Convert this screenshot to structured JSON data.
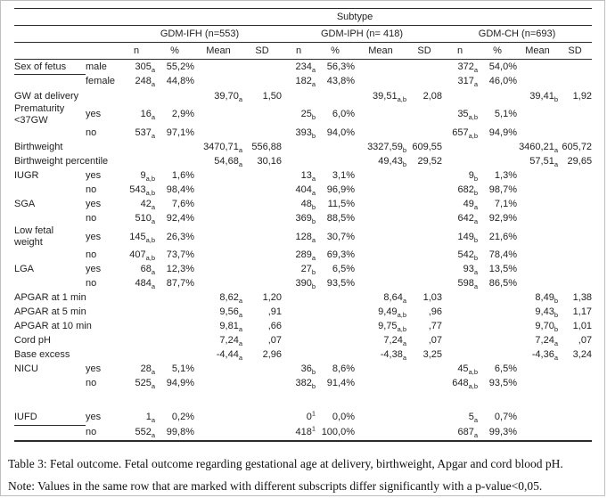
{
  "table": {
    "subtype_header": "Subtype",
    "groups": [
      {
        "label": "GDM-IFH (n=553)"
      },
      {
        "label": "GDM-IPH (n= 418)"
      },
      {
        "label": "GDM-CH (n=693)"
      }
    ],
    "col_headers": [
      "n",
      "%",
      "Mean",
      "SD"
    ],
    "rows": [
      {
        "label": "Sex of fetus",
        "ul": true,
        "sub": "male",
        "cells": [
          {
            "v": "305",
            "sb": "a"
          },
          {
            "v": "55,2%"
          },
          null,
          null,
          {
            "v": "234",
            "sb": "a"
          },
          {
            "v": "56,3%"
          },
          null,
          null,
          {
            "v": "372",
            "sb": "a"
          },
          {
            "v": "54,0%"
          },
          null,
          null
        ]
      },
      {
        "sub": "female",
        "cells": [
          {
            "v": "248",
            "sb": "a"
          },
          {
            "v": "44,8%"
          },
          null,
          null,
          {
            "v": "182",
            "sb": "a"
          },
          {
            "v": "43,8%"
          },
          null,
          null,
          {
            "v": "317",
            "sb": "a"
          },
          {
            "v": "46,0%"
          },
          null,
          null
        ]
      },
      {
        "label": "GW at delivery",
        "cells": [
          null,
          null,
          {
            "v": "39,70",
            "sb": "a"
          },
          {
            "v": "1,50"
          },
          null,
          null,
          {
            "v": "39,51",
            "sb": "a,b"
          },
          {
            "v": "2,08"
          },
          null,
          null,
          {
            "v": "39,41",
            "sb": "b"
          },
          {
            "v": "1,92"
          }
        ]
      },
      {
        "label": "Prematurity\n<37GW",
        "sub": "yes",
        "cells": [
          {
            "v": "16",
            "sb": "a"
          },
          {
            "v": "2,9%"
          },
          null,
          null,
          {
            "v": "25",
            "sb": "b"
          },
          {
            "v": "6,0%"
          },
          null,
          null,
          {
            "v": "35",
            "sb": "a,b"
          },
          {
            "v": "5,1%"
          },
          null,
          null
        ]
      },
      {
        "sub": "no",
        "cells": [
          {
            "v": "537",
            "sb": "a"
          },
          {
            "v": "97,1%"
          },
          null,
          null,
          {
            "v": "393",
            "sb": "b"
          },
          {
            "v": "94,0%"
          },
          null,
          null,
          {
            "v": "657",
            "sb": "a,b"
          },
          {
            "v": "94,9%"
          },
          null,
          null
        ]
      },
      {
        "label": "Birthweight",
        "cells": [
          null,
          null,
          {
            "v": "3470,71",
            "sb": "a"
          },
          {
            "v": "556,88"
          },
          null,
          null,
          {
            "v": "3327,59",
            "sb": "b"
          },
          {
            "v": "609,55"
          },
          null,
          null,
          {
            "v": "3460,21",
            "sb": "a"
          },
          {
            "v": "605,72"
          }
        ]
      },
      {
        "label": "Birthweight percentile",
        "cells": [
          null,
          null,
          {
            "v": "54,68",
            "sb": "a"
          },
          {
            "v": "30,16"
          },
          null,
          null,
          {
            "v": "49,43",
            "sb": "b"
          },
          {
            "v": "29,52"
          },
          null,
          null,
          {
            "v": "57,51",
            "sb": "a"
          },
          {
            "v": "29,65"
          }
        ]
      },
      {
        "label": "IUGR",
        "sub": "yes",
        "cells": [
          {
            "v": "9",
            "sb": "a,b"
          },
          {
            "v": "1,6%"
          },
          null,
          null,
          {
            "v": "13",
            "sb": "a"
          },
          {
            "v": "3,1%"
          },
          null,
          null,
          {
            "v": "9",
            "sb": "b"
          },
          {
            "v": "1,3%"
          },
          null,
          null
        ]
      },
      {
        "sub": "no",
        "cells": [
          {
            "v": "543",
            "sb": "a,b"
          },
          {
            "v": "98,4%"
          },
          null,
          null,
          {
            "v": "404",
            "sb": "a"
          },
          {
            "v": "96,9%"
          },
          null,
          null,
          {
            "v": "682",
            "sb": "b"
          },
          {
            "v": "98,7%"
          },
          null,
          null
        ]
      },
      {
        "label": "SGA",
        "sub": "yes",
        "cells": [
          {
            "v": "42",
            "sb": "a"
          },
          {
            "v": "7,6%"
          },
          null,
          null,
          {
            "v": "48",
            "sb": "b"
          },
          {
            "v": "11,5%"
          },
          null,
          null,
          {
            "v": "49",
            "sb": "a"
          },
          {
            "v": "7,1%"
          },
          null,
          null
        ]
      },
      {
        "sub": "no",
        "cells": [
          {
            "v": "510",
            "sb": "a"
          },
          {
            "v": "92,4%"
          },
          null,
          null,
          {
            "v": "369",
            "sb": "b"
          },
          {
            "v": "88,5%"
          },
          null,
          null,
          {
            "v": "642",
            "sb": "a"
          },
          {
            "v": "92,9%"
          },
          null,
          null
        ]
      },
      {
        "label": "Low fetal\nweight",
        "sub": "yes",
        "cells": [
          {
            "v": "145",
            "sb": "a,b"
          },
          {
            "v": "26,3%"
          },
          null,
          null,
          {
            "v": "128",
            "sb": "a"
          },
          {
            "v": "30,7%"
          },
          null,
          null,
          {
            "v": "149",
            "sb": "b"
          },
          {
            "v": "21,6%"
          },
          null,
          null
        ]
      },
      {
        "sub": "no",
        "cells": [
          {
            "v": "407",
            "sb": "a,b"
          },
          {
            "v": "73,7%"
          },
          null,
          null,
          {
            "v": "289",
            "sb": "a"
          },
          {
            "v": "69,3%"
          },
          null,
          null,
          {
            "v": "542",
            "sb": "b"
          },
          {
            "v": "78,4%"
          },
          null,
          null
        ]
      },
      {
        "label": "LGA",
        "sub": "yes",
        "cells": [
          {
            "v": "68",
            "sb": "a"
          },
          {
            "v": "12,3%"
          },
          null,
          null,
          {
            "v": "27",
            "sb": "b"
          },
          {
            "v": "6,5%"
          },
          null,
          null,
          {
            "v": "93",
            "sb": "a"
          },
          {
            "v": "13,5%"
          },
          null,
          null
        ]
      },
      {
        "sub": "no",
        "cells": [
          {
            "v": "484",
            "sb": "a"
          },
          {
            "v": "87,7%"
          },
          null,
          null,
          {
            "v": "390",
            "sb": "b"
          },
          {
            "v": "93,5%"
          },
          null,
          null,
          {
            "v": "598",
            "sb": "a"
          },
          {
            "v": "86,5%"
          },
          null,
          null
        ]
      },
      {
        "label": "APGAR at 1 min",
        "cells": [
          null,
          null,
          {
            "v": "8,62",
            "sb": "a"
          },
          {
            "v": "1,20"
          },
          null,
          null,
          {
            "v": "8,64",
            "sb": "a"
          },
          {
            "v": "1,03"
          },
          null,
          null,
          {
            "v": "8,49",
            "sb": "b"
          },
          {
            "v": "1,38"
          }
        ]
      },
      {
        "label": "APGAR at 5 min",
        "cells": [
          null,
          null,
          {
            "v": "9,56",
            "sb": "a"
          },
          {
            "v": ",91"
          },
          null,
          null,
          {
            "v": "9,49",
            "sb": "a,b"
          },
          {
            "v": ",96"
          },
          null,
          null,
          {
            "v": "9,43",
            "sb": "b"
          },
          {
            "v": "1,17"
          }
        ]
      },
      {
        "label": "APGAR at 10 min",
        "cells": [
          null,
          null,
          {
            "v": "9,81",
            "sb": "a"
          },
          {
            "v": ",66"
          },
          null,
          null,
          {
            "v": "9,75",
            "sb": "a,b"
          },
          {
            "v": ",77"
          },
          null,
          null,
          {
            "v": "9,70",
            "sb": "b"
          },
          {
            "v": "1,01"
          }
        ]
      },
      {
        "label": "Cord pH",
        "cells": [
          null,
          null,
          {
            "v": "7,24",
            "sb": "a"
          },
          {
            "v": ",07"
          },
          null,
          null,
          {
            "v": "7,24",
            "sb": "a"
          },
          {
            "v": ",07"
          },
          null,
          null,
          {
            "v": "7,24",
            "sb": "a"
          },
          {
            "v": ",07"
          }
        ]
      },
      {
        "label": "Base excess",
        "cells": [
          null,
          null,
          {
            "v": "-4,44",
            "sb": "a"
          },
          {
            "v": "2,96"
          },
          null,
          null,
          {
            "v": "-4,38",
            "sb": "a"
          },
          {
            "v": "3,25"
          },
          null,
          null,
          {
            "v": "-4,36",
            "sb": "a"
          },
          {
            "v": "3,24"
          }
        ]
      },
      {
        "label": "NICU",
        "sub": "yes",
        "cells": [
          {
            "v": "28",
            "sb": "a"
          },
          {
            "v": "5,1%"
          },
          null,
          null,
          {
            "v": "36",
            "sb": "b"
          },
          {
            "v": "8,6%"
          },
          null,
          null,
          {
            "v": "45",
            "sb": "a,b"
          },
          {
            "v": "6,5%"
          },
          null,
          null
        ]
      },
      {
        "sub": "no",
        "cells": [
          {
            "v": "525",
            "sb": "a"
          },
          {
            "v": "94,9%"
          },
          null,
          null,
          {
            "v": "382",
            "sb": "b"
          },
          {
            "v": "91,4%"
          },
          null,
          null,
          {
            "v": "648",
            "sb": "a,b"
          },
          {
            "v": "93,5%"
          },
          null,
          null
        ]
      },
      {
        "spacer": true
      },
      {
        "label": "IUFD",
        "ul": true,
        "sub": "yes",
        "cells": [
          {
            "v": "1",
            "sb": "a"
          },
          {
            "v": "0,2%"
          },
          null,
          null,
          {
            "v": "0",
            "sp": "1"
          },
          {
            "v": "0,0%"
          },
          null,
          null,
          {
            "v": "5",
            "sb": "a"
          },
          {
            "v": "0,7%"
          },
          null,
          null
        ]
      },
      {
        "sub": "no",
        "last": true,
        "cells": [
          {
            "v": "552",
            "sb": "a"
          },
          {
            "v": "99,8%"
          },
          null,
          null,
          {
            "v": "418",
            "sp": "1"
          },
          {
            "v": "100,0%"
          },
          null,
          null,
          {
            "v": "687",
            "sb": "a"
          },
          {
            "v": "99,3%"
          },
          null,
          null
        ]
      }
    ]
  },
  "caption": "Table 3: Fetal outcome. Fetal outcome regarding gestational age at delivery, birthweight, Apgar and cord blood pH.",
  "note": "Note: Values in the same row that are marked with different subscripts differ significantly with a p-value<0,05."
}
